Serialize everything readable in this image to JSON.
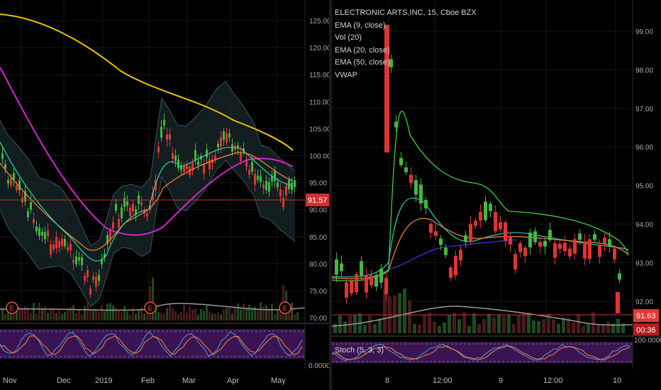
{
  "left_chart": {
    "price_axis": [
      "125.00",
      "120.00",
      "115.00",
      "110.00",
      "105.00",
      "100.00",
      "95.00",
      "90.00",
      "85.00",
      "80.00",
      "75.00",
      "70.00"
    ],
    "current_price": "91.57",
    "osc_axis": [
      "0.0000"
    ],
    "time_axis": [
      "Nov",
      "Dec",
      "2019",
      "Feb",
      "Mar",
      "Apr",
      "May"
    ],
    "earnings_marker": "E",
    "colors": {
      "ema_slow": "#e9c200",
      "ema_mid": "#d025d0",
      "ema_fast": "#f28a3c",
      "ema_short": "#2bd49a",
      "band": "#6aa0b0",
      "up": "#43b843",
      "down": "#e03434",
      "price_line": "#c0392b",
      "osc_bg": "#3a1452"
    }
  },
  "right_chart": {
    "title": "ELECTRONIC ARTS,INC, 15, Cboe BZX",
    "indicators": [
      "EMA (9, close)",
      "Vol (20)",
      "EMA (20, close)",
      "EMA (50, close)",
      "VWAP"
    ],
    "price_axis": [
      "99.00",
      "98.00",
      "97.00",
      "96.00",
      "95.00",
      "94.00",
      "93.00",
      "92.00"
    ],
    "current_price": "91.63",
    "countdown": "00:36",
    "osc_axis": [
      "100.0000"
    ],
    "oscillator": "Stoch (5, 3, 3)",
    "time_axis": [
      "8",
      "12:00",
      "9",
      "12:00",
      "10"
    ],
    "colors": {
      "ema_green": "#3ccf3c",
      "ema_teal": "#2bc9b0",
      "ema_orange": "#f28a3c",
      "vwap": "#3b3bd0",
      "up": "#43b843",
      "down": "#e03434",
      "price_label": "#e53935",
      "countdown_bg": "#b71c1c"
    }
  }
}
